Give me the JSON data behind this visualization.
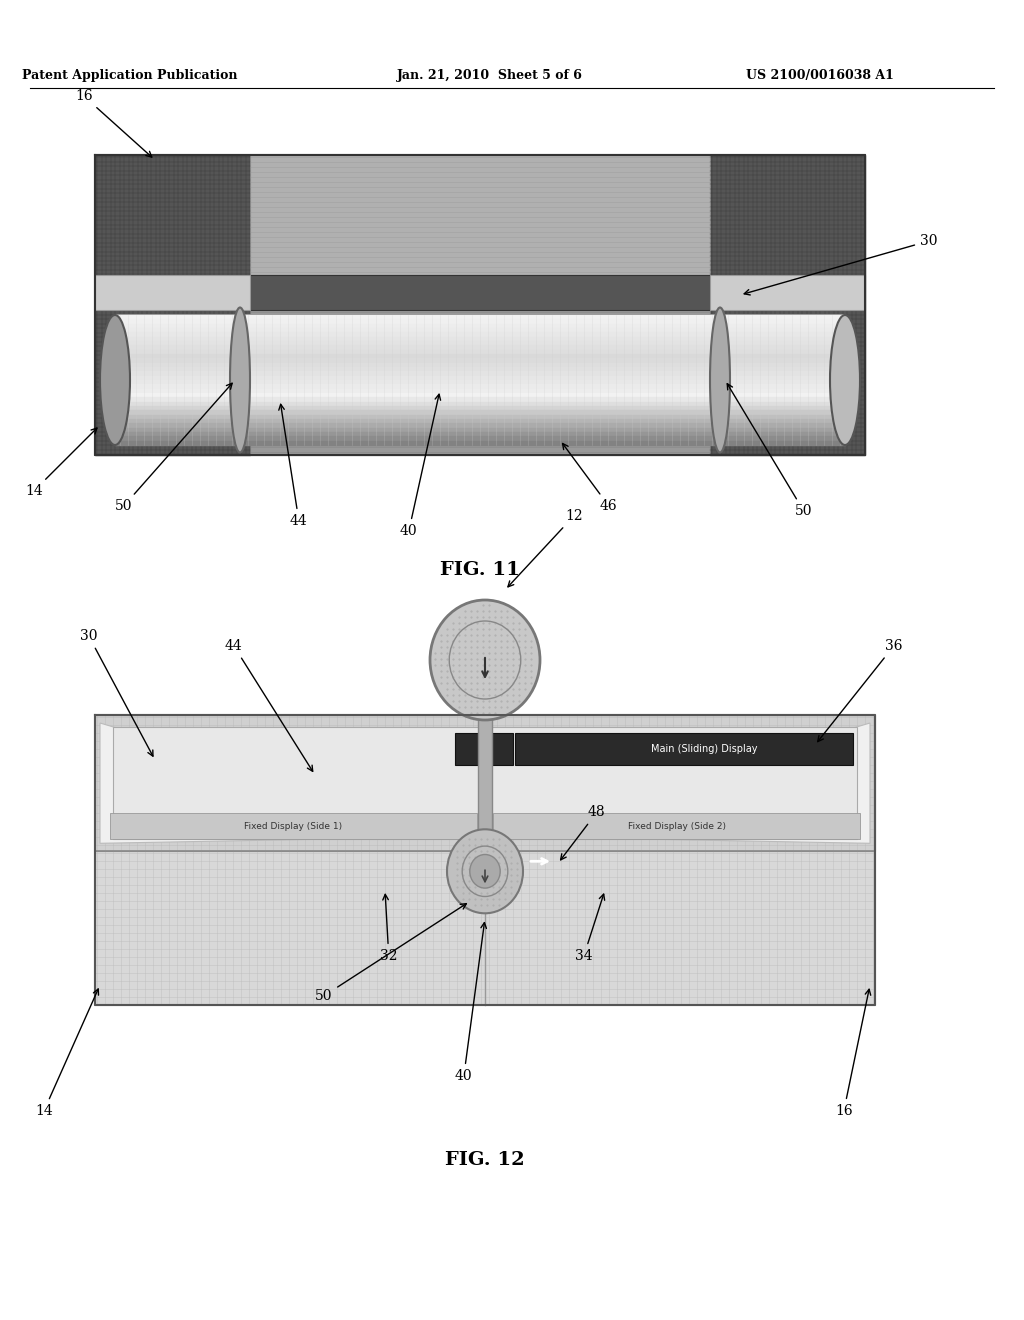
{
  "header_left": "Patent Application Publication",
  "header_mid": "Jan. 21, 2010  Sheet 5 of 6",
  "header_right": "US 2100/0016038 A1",
  "fig11_caption": "FIG. 11",
  "fig12_caption": "FIG. 12",
  "bg_color": "#ffffff"
}
